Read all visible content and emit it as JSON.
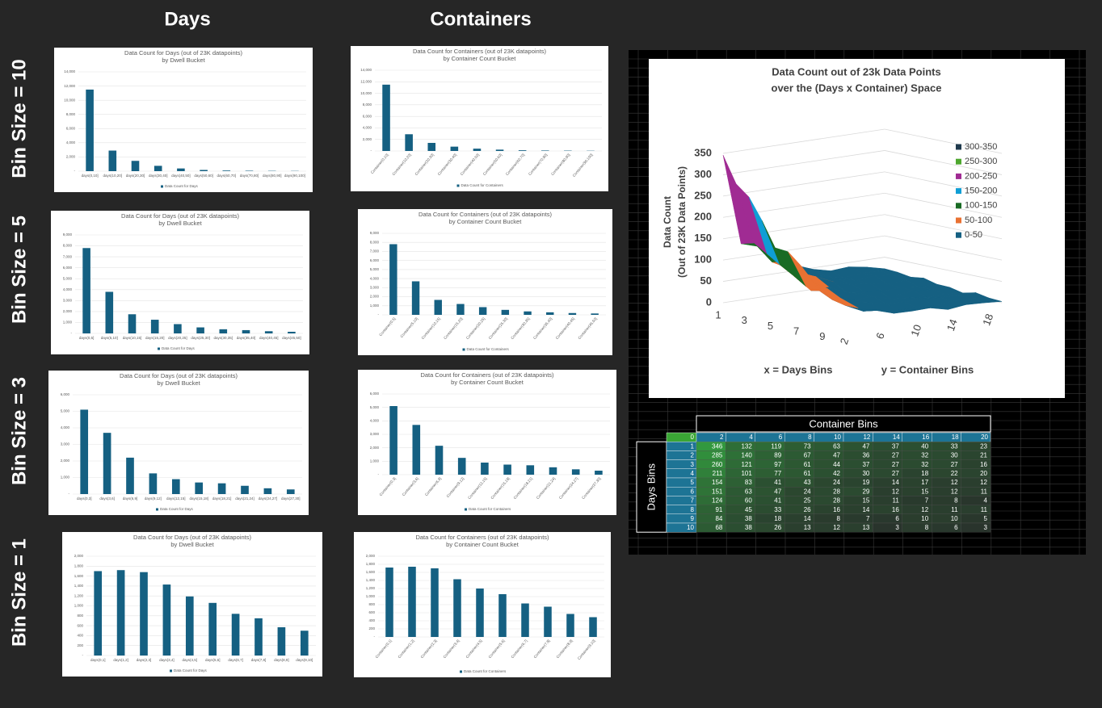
{
  "headers": [
    "Days",
    "Containers"
  ],
  "row_labels": [
    "Bin Size = 10",
    "Bin Size = 5",
    "Bin Size = 3",
    "Bin Size = 1"
  ],
  "chart_data": [
    {
      "type": "bar",
      "title": "Data Count for Days (out of 23K datapoints)",
      "subtitle": "by Dwell Bucket",
      "categories": [
        "days(0,10]",
        "days(10,20]",
        "days(20,30]",
        "days(30,40]",
        "days(40,50]",
        "days(50,60]",
        "days(60,70]",
        "days(70,80]",
        "days(80,90]",
        "days(90,100]"
      ],
      "series": [
        {
          "name": "Data Count for Days",
          "color": "#156082",
          "values": [
            11500,
            2900,
            1450,
            750,
            380,
            170,
            90,
            60,
            40,
            30
          ]
        }
      ],
      "ylim": [
        0,
        14000
      ],
      "yticks": [
        {
          "value": 0,
          "label": "-"
        },
        {
          "value": 2000,
          "label": "2,000"
        },
        {
          "value": 4000,
          "label": "4,000"
        },
        {
          "value": 6000,
          "label": "6,000"
        },
        {
          "value": 8000,
          "label": "8,000"
        },
        {
          "value": 10000,
          "label": "10,000"
        },
        {
          "value": 12000,
          "label": "12,000"
        },
        {
          "value": 14000,
          "label": "14,000"
        }
      ]
    },
    {
      "type": "bar",
      "title": "Data Count for Containers (out of 23K datapoints)",
      "subtitle": "by Container Count Bucket",
      "categories": [
        "Container(0,10]",
        "Container(10,20]",
        "Container(20,30]",
        "Container(30,40]",
        "Container(40,50]",
        "Container(50,60]",
        "Container(60,70]",
        "Container(70,80]",
        "Container(80,90]",
        "Container(90,100]"
      ],
      "series": [
        {
          "name": "Data Count for Containers",
          "color": "#156082",
          "values": [
            11500,
            2900,
            1400,
            750,
            400,
            230,
            120,
            80,
            60,
            40
          ]
        }
      ],
      "ylim": [
        0,
        14000
      ],
      "yticks": [
        {
          "value": 0,
          "label": "-"
        },
        {
          "value": 2000,
          "label": "2,000"
        },
        {
          "value": 4000,
          "label": "4,000"
        },
        {
          "value": 6000,
          "label": "6,000"
        },
        {
          "value": 8000,
          "label": "8,000"
        },
        {
          "value": 10000,
          "label": "10,000"
        },
        {
          "value": 12000,
          "label": "12,000"
        },
        {
          "value": 14000,
          "label": "14,000"
        }
      ]
    },
    {
      "type": "bar",
      "title": "Data Count for Days (out of 23K datapoints)",
      "subtitle": "by Dwell Bucket",
      "categories": [
        "days(0,5]",
        "days(5,10]",
        "days(10,15]",
        "days(15,20]",
        "days(20,25]",
        "days(25,30]",
        "days(30,35]",
        "days(35,40]",
        "days(40,45]",
        "days(45,50]"
      ],
      "series": [
        {
          "name": "Data Count for Days",
          "color": "#156082",
          "values": [
            7800,
            3800,
            1750,
            1250,
            850,
            550,
            380,
            300,
            200,
            150
          ]
        }
      ],
      "ylim": [
        0,
        9000
      ],
      "yticks": [
        {
          "value": 0,
          "label": "-"
        },
        {
          "value": 1000,
          "label": "1,000"
        },
        {
          "value": 2000,
          "label": "2,000"
        },
        {
          "value": 3000,
          "label": "3,000"
        },
        {
          "value": 4000,
          "label": "4,000"
        },
        {
          "value": 5000,
          "label": "5,000"
        },
        {
          "value": 6000,
          "label": "6,000"
        },
        {
          "value": 7000,
          "label": "7,000"
        },
        {
          "value": 8000,
          "label": "8,000"
        },
        {
          "value": 9000,
          "label": "9,000"
        }
      ]
    },
    {
      "type": "bar",
      "title": "Data Count for Containers (out of 23K datapoints)",
      "subtitle": "by Container Count Bucket",
      "categories": [
        "Container(0,5]",
        "Container(5,10]",
        "Container(10,15]",
        "Container(15,20]",
        "Container(20,25]",
        "Container(25,30]",
        "Container(30,35]",
        "Container(35,40]",
        "Container(40,45]",
        "Container(45,50]"
      ],
      "series": [
        {
          "name": "Data Count for Containers",
          "color": "#156082",
          "values": [
            7800,
            3700,
            1650,
            1200,
            850,
            550,
            380,
            280,
            200,
            150
          ]
        }
      ],
      "ylim": [
        0,
        9000
      ],
      "yticks": [
        {
          "value": 0,
          "label": "-"
        },
        {
          "value": 1000,
          "label": "1,000"
        },
        {
          "value": 2000,
          "label": "2,000"
        },
        {
          "value": 3000,
          "label": "3,000"
        },
        {
          "value": 4000,
          "label": "4,000"
        },
        {
          "value": 5000,
          "label": "5,000"
        },
        {
          "value": 6000,
          "label": "6,000"
        },
        {
          "value": 7000,
          "label": "7,000"
        },
        {
          "value": 8000,
          "label": "8,000"
        },
        {
          "value": 9000,
          "label": "9,000"
        }
      ]
    },
    {
      "type": "bar",
      "title": "Data Count for Days (out of 23K datapoints)",
      "subtitle": "by Dwell Bucket",
      "categories": [
        "days(0,3]",
        "days(3,6]",
        "days(6,9]",
        "days(9,12]",
        "days(12,15]",
        "days(15,18]",
        "days(18,21]",
        "days(21,24]",
        "days(24,27]",
        "days(27,30]"
      ],
      "series": [
        {
          "name": "Data Count for Days",
          "color": "#156082",
          "values": [
            5100,
            3700,
            2200,
            1250,
            900,
            700,
            650,
            500,
            350,
            280
          ]
        }
      ],
      "ylim": [
        0,
        6000
      ],
      "yticks": [
        {
          "value": 0,
          "label": "-"
        },
        {
          "value": 1000,
          "label": "1,000"
        },
        {
          "value": 2000,
          "label": "2,000"
        },
        {
          "value": 3000,
          "label": "3,000"
        },
        {
          "value": 4000,
          "label": "4,000"
        },
        {
          "value": 5000,
          "label": "5,000"
        },
        {
          "value": 6000,
          "label": "6,000"
        }
      ]
    },
    {
      "type": "bar",
      "title": "Data Count for Containers (out of 23K datapoints)",
      "subtitle": "by Container Count Bucket",
      "categories": [
        "Container(0,3]",
        "Container(3,6]",
        "Container(6,9]",
        "Container(9,12]",
        "Container(12,15]",
        "Container(15,18]",
        "Container(18,21]",
        "Container(21,24]",
        "Container(24,27]",
        "Container(27,30]"
      ],
      "series": [
        {
          "name": "Data Count for Containers",
          "color": "#156082",
          "values": [
            5100,
            3700,
            2150,
            1250,
            900,
            750,
            700,
            550,
            400,
            300
          ]
        }
      ],
      "ylim": [
        0,
        6000
      ],
      "yticks": [
        {
          "value": 0,
          "label": "-"
        },
        {
          "value": 1000,
          "label": "1,000"
        },
        {
          "value": 2000,
          "label": "2,000"
        },
        {
          "value": 3000,
          "label": "3,000"
        },
        {
          "value": 4000,
          "label": "4,000"
        },
        {
          "value": 5000,
          "label": "5,000"
        },
        {
          "value": 6000,
          "label": "6,000"
        }
      ]
    },
    {
      "type": "bar",
      "title": "Data Count for Days (out of 23K datapoints)",
      "subtitle": "by Dwell Bucket",
      "categories": [
        "days(0,1]",
        "days(1,2]",
        "days(2,3]",
        "days(3,4]",
        "days(4,5]",
        "days(5,6]",
        "days(6,7]",
        "days(7,8]",
        "days(8,9]",
        "days(9,10]"
      ],
      "series": [
        {
          "name": "Data Count for Days",
          "color": "#156082",
          "values": [
            1700,
            1720,
            1680,
            1430,
            1190,
            1060,
            840,
            750,
            570,
            500
          ]
        }
      ],
      "ylim": [
        0,
        2000
      ],
      "yticks": [
        {
          "value": 0,
          "label": "-"
        },
        {
          "value": 200,
          "label": "200"
        },
        {
          "value": 400,
          "label": "400"
        },
        {
          "value": 600,
          "label": "600"
        },
        {
          "value": 800,
          "label": "800"
        },
        {
          "value": 1000,
          "label": "1,000"
        },
        {
          "value": 1200,
          "label": "1,200"
        },
        {
          "value": 1400,
          "label": "1,400"
        },
        {
          "value": 1600,
          "label": "1,600"
        },
        {
          "value": 1800,
          "label": "1,800"
        },
        {
          "value": 2000,
          "label": "2,000"
        }
      ]
    },
    {
      "type": "bar",
      "title": "Data Count for Containers (out of 23K datapoints)",
      "subtitle": "by Container Count Bucket",
      "categories": [
        "Container(0,1]",
        "Container(1,2]",
        "Container(2,3]",
        "Container(3,4]",
        "Container(4,5]",
        "Container(5,6]",
        "Container(6,7]",
        "Container(7,8]",
        "Container(8,9]",
        "Container(9,10]"
      ],
      "series": [
        {
          "name": "Data Count for Containers",
          "color": "#156082",
          "values": [
            1720,
            1740,
            1700,
            1430,
            1200,
            1060,
            830,
            750,
            570,
            490
          ]
        }
      ],
      "ylim": [
        0,
        2000
      ],
      "yticks": [
        {
          "value": 0,
          "label": "-"
        },
        {
          "value": 200,
          "label": "200"
        },
        {
          "value": 400,
          "label": "400"
        },
        {
          "value": 600,
          "label": "600"
        },
        {
          "value": 800,
          "label": "800"
        },
        {
          "value": 1000,
          "label": "1,000"
        },
        {
          "value": 1200,
          "label": "1,200"
        },
        {
          "value": 1400,
          "label": "1,400"
        },
        {
          "value": 1600,
          "label": "1,600"
        },
        {
          "value": 1800,
          "label": "1,800"
        },
        {
          "value": 2000,
          "label": "2,000"
        }
      ]
    },
    {
      "type": "surface",
      "title": "Data Count out of 23k Data Points",
      "subtitle": "over the (Days x Container) Space",
      "zlabel": [
        "Data Count",
        "(Out of 23K Data Points)"
      ],
      "xlabel": "x = Days Bins",
      "ylabel": "y = Container Bins",
      "xticks": [
        1,
        3,
        5,
        7,
        9
      ],
      "yticks": [
        2,
        6,
        10,
        14,
        18
      ],
      "zlim": [
        0,
        350
      ],
      "zticks": [
        0,
        50,
        100,
        150,
        200,
        250,
        300,
        350
      ],
      "legend": [
        {
          "name": "300-350",
          "color": "#1f3a4d"
        },
        {
          "name": "250-300",
          "color": "#4ea72e"
        },
        {
          "name": "200-250",
          "color": "#a02b93"
        },
        {
          "name": "150-200",
          "color": "#0f9ed5"
        },
        {
          "name": "100-150",
          "color": "#196b24"
        },
        {
          "name": "50-100",
          "color": "#e97132"
        },
        {
          "name": "0-50",
          "color": "#156082"
        }
      ]
    }
  ],
  "table": {
    "title": "Container Bins",
    "row_title": "Days Bins",
    "columns": [
      0,
      2,
      4,
      6,
      8,
      10,
      12,
      14,
      16,
      18,
      20
    ],
    "rows": [
      {
        "label": 1,
        "values": [
          346,
          132,
          119,
          73,
          63,
          47,
          37,
          40,
          33,
          23
        ]
      },
      {
        "label": 2,
        "values": [
          285,
          140,
          89,
          67,
          47,
          36,
          27,
          32,
          30,
          21
        ]
      },
      {
        "label": 3,
        "values": [
          260,
          121,
          97,
          61,
          44,
          37,
          27,
          32,
          27,
          16
        ]
      },
      {
        "label": 4,
        "values": [
          211,
          101,
          77,
          61,
          42,
          30,
          27,
          18,
          22,
          20
        ]
      },
      {
        "label": 5,
        "values": [
          154,
          83,
          41,
          43,
          24,
          19,
          14,
          17,
          12,
          12
        ]
      },
      {
        "label": 6,
        "values": [
          151,
          63,
          47,
          24,
          28,
          29,
          12,
          15,
          12,
          11
        ]
      },
      {
        "label": 7,
        "values": [
          124,
          60,
          41,
          25,
          28,
          15,
          11,
          7,
          8,
          4
        ]
      },
      {
        "label": 8,
        "values": [
          91,
          45,
          33,
          26,
          16,
          14,
          16,
          12,
          11,
          11
        ]
      },
      {
        "label": 9,
        "values": [
          84,
          38,
          18,
          14,
          8,
          7,
          6,
          10,
          10,
          5
        ]
      },
      {
        "label": 10,
        "values": [
          68,
          38,
          26,
          13,
          12,
          13,
          3,
          8,
          6,
          3
        ]
      }
    ]
  }
}
